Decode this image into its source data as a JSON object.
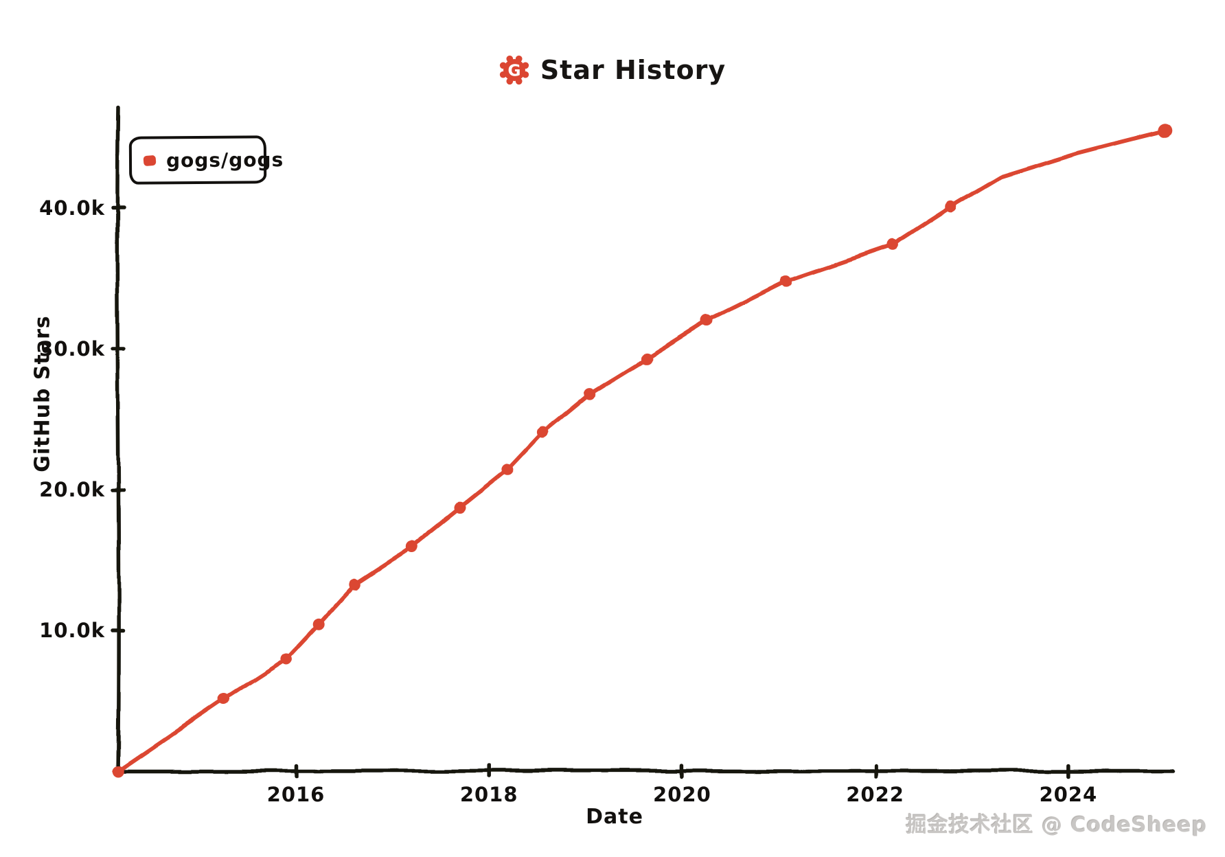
{
  "header": {
    "title": "Star History",
    "logo_icon": "star-history-gear-logo"
  },
  "legend": {
    "label": "gogs/gogs",
    "marker_color": "#DB4632"
  },
  "watermark": {
    "text": "掘金技术社区 @ CodeSheep"
  },
  "colors": {
    "line": "#DB4632",
    "axis": "#15120f",
    "watermark": "#c8c6c4",
    "background": "#ffffff"
  },
  "chart_data": {
    "type": "line",
    "title": "Star History",
    "xlabel": "Date",
    "ylabel": "GitHub Stars",
    "legend_position": "top-left",
    "grid": false,
    "x_range_years": [
      2014.15,
      2025.4
    ],
    "y_range": [
      0,
      47000
    ],
    "x_ticks": [
      {
        "value": 2016,
        "label": "2016"
      },
      {
        "value": 2018,
        "label": "2018"
      },
      {
        "value": 2020,
        "label": "2020"
      },
      {
        "value": 2022,
        "label": "2022"
      },
      {
        "value": 2024,
        "label": "2024"
      }
    ],
    "y_ticks": [
      {
        "value": 10000,
        "label": "10.0k"
      },
      {
        "value": 20000,
        "label": "20.0k"
      },
      {
        "value": 30000,
        "label": "30.0k"
      },
      {
        "value": 40000,
        "label": "40.0k"
      }
    ],
    "series": [
      {
        "name": "gogs/gogs",
        "color": "#DB4632",
        "points": [
          {
            "year": 2014.16,
            "stars": 0,
            "marker": true
          },
          {
            "year": 2015.25,
            "stars": 5100,
            "marker": true
          },
          {
            "year": 2015.9,
            "stars": 8000,
            "marker": true
          },
          {
            "year": 2016.24,
            "stars": 10500,
            "marker": true
          },
          {
            "year": 2016.61,
            "stars": 13300,
            "marker": true
          },
          {
            "year": 2017.19,
            "stars": 15900,
            "marker": true
          },
          {
            "year": 2017.7,
            "stars": 18700,
            "marker": true
          },
          {
            "year": 2018.19,
            "stars": 21400,
            "marker": true
          },
          {
            "year": 2018.56,
            "stars": 24100,
            "marker": true
          },
          {
            "year": 2019.04,
            "stars": 26800,
            "marker": true
          },
          {
            "year": 2019.63,
            "stars": 29300,
            "marker": true
          },
          {
            "year": 2020.26,
            "stars": 32000,
            "marker": true
          },
          {
            "year": 2021.08,
            "stars": 34800,
            "marker": true
          },
          {
            "year": 2022.18,
            "stars": 37400,
            "marker": true
          },
          {
            "year": 2022.79,
            "stars": 40100,
            "marker": true
          },
          {
            "year": 2023.3,
            "stars": 42200,
            "marker": false
          },
          {
            "year": 2024.1,
            "stars": 43900,
            "marker": false
          },
          {
            "year": 2024.55,
            "stars": 44700,
            "marker": false
          },
          {
            "year": 2025.01,
            "stars": 45500,
            "marker": true
          }
        ]
      }
    ]
  }
}
